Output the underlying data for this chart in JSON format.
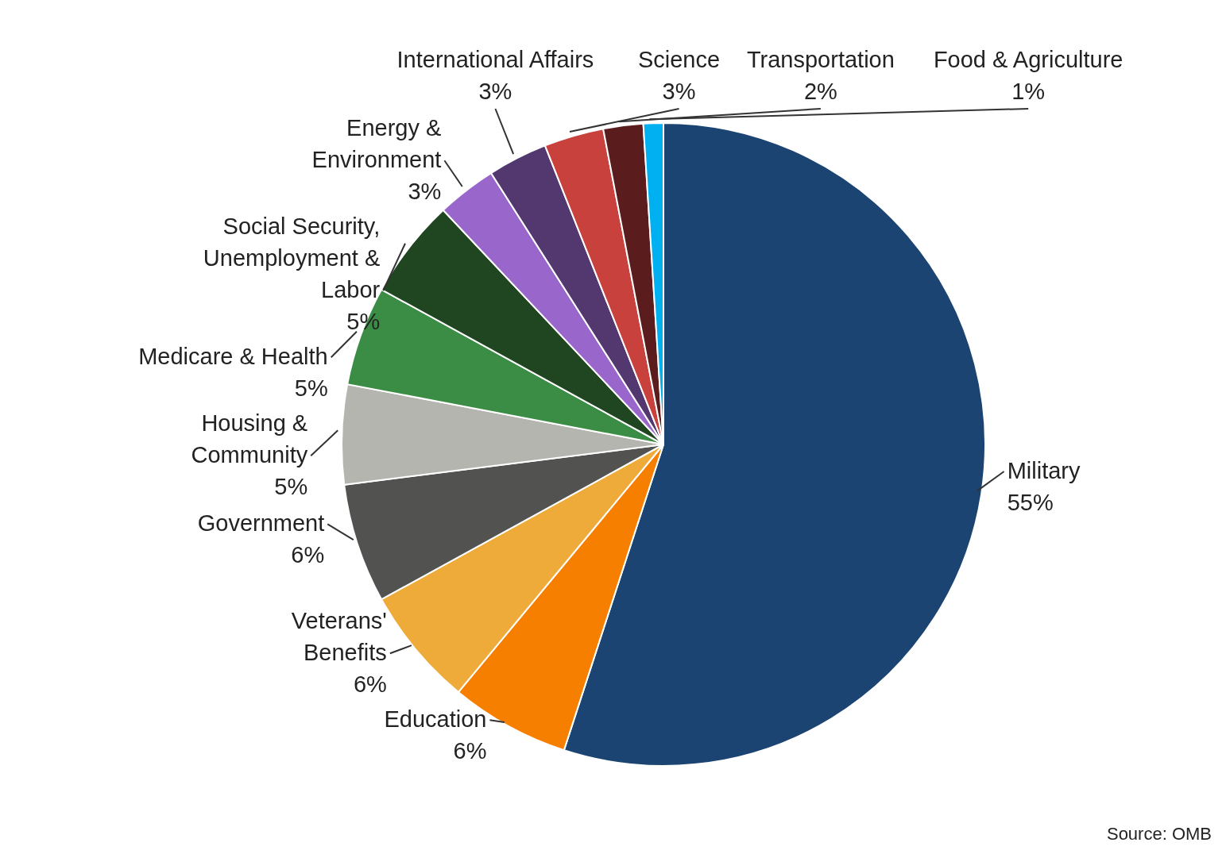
{
  "chart_data": {
    "type": "pie",
    "categories": [
      "Military",
      "Education",
      "Veterans' Benefits",
      "Government",
      "Housing & Community",
      "Medicare & Health",
      "Social Security, Unemployment & Labor",
      "Energy & Environment",
      "International Affairs",
      "Science",
      "Transportation",
      "Food & Agriculture"
    ],
    "values": [
      55,
      6,
      6,
      6,
      5,
      5,
      5,
      3,
      3,
      3,
      2,
      1
    ],
    "colors": [
      "#1b4472",
      "#f77f00",
      "#eeab3a",
      "#525350",
      "#b5b5b0",
      "#3b8c44",
      "#1f4620",
      "#9966cc",
      "#52386f",
      "#c9413c",
      "#5a1c1c",
      "#00b0f0"
    ],
    "value_labels": [
      "55%",
      "6%",
      "6%",
      "6%",
      "5%",
      "5%",
      "5%",
      "3%",
      "3%",
      "3%",
      "2%",
      "1%"
    ],
    "annotations": [
      "Source: OMB"
    ]
  }
}
